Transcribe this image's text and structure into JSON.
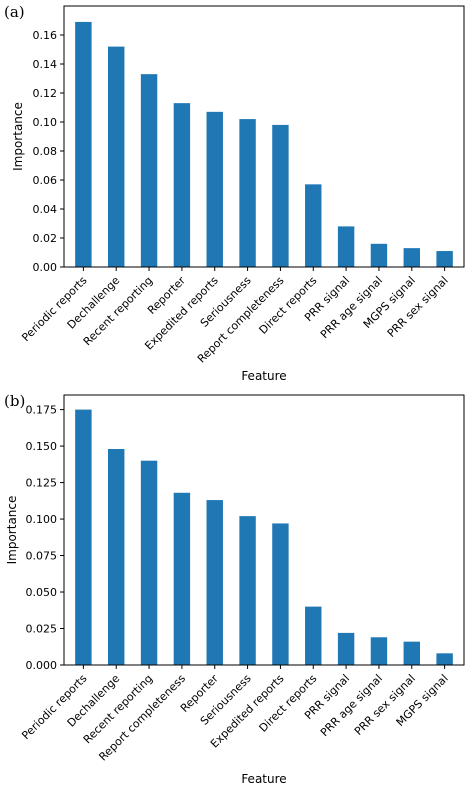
{
  "chart_data": [
    {
      "panel_label": "(a)",
      "type": "bar",
      "xlabel": "Feature",
      "ylabel": "Importance",
      "ylim": [
        0,
        0.18
      ],
      "yticks": [
        "0.00",
        "0.02",
        "0.04",
        "0.06",
        "0.08",
        "0.10",
        "0.12",
        "0.14",
        "0.16"
      ],
      "categories": [
        "Periodic reports",
        "Dechallenge",
        "Recent reporting",
        "Reporter",
        "Expedited reports",
        "Seriousness",
        "Report completeness",
        "Direct reports",
        "PRR signal",
        "PRR age signal",
        "MGPS signal",
        "PRR sex signal"
      ],
      "values": [
        0.169,
        0.152,
        0.133,
        0.113,
        0.107,
        0.102,
        0.098,
        0.057,
        0.028,
        0.016,
        0.013,
        0.011
      ],
      "color": "#1f77b4",
      "grid": false
    },
    {
      "panel_label": "(b)",
      "type": "bar",
      "xlabel": "Feature",
      "ylabel": "Importance",
      "ylim": [
        0,
        0.185
      ],
      "yticks": [
        "0.000",
        "0.025",
        "0.050",
        "0.075",
        "0.100",
        "0.125",
        "0.150",
        "0.175"
      ],
      "categories": [
        "Periodic reports",
        "Dechallenge",
        "Recent reporting",
        "Report completeness",
        "Reporter",
        "Seriousness",
        "Expedited reports",
        "Direct reports",
        "PRR signal",
        "PRR age signal",
        "PRR sex signal",
        "MGPS signal"
      ],
      "values": [
        0.175,
        0.148,
        0.14,
        0.118,
        0.113,
        0.102,
        0.097,
        0.04,
        0.022,
        0.019,
        0.016,
        0.008
      ],
      "color": "#1f77b4",
      "grid": false
    }
  ]
}
